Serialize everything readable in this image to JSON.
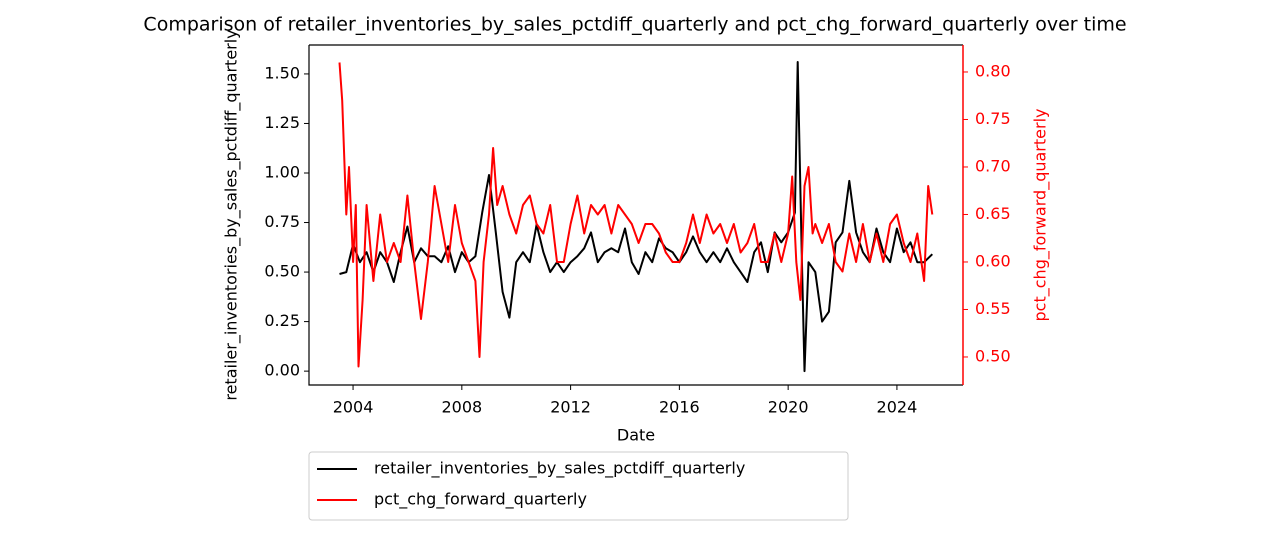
{
  "chart_data": {
    "type": "line",
    "title": "Comparison of retailer_inventories_by_sales_pctdiff_quarterly and pct_chg_forward_quarterly over time",
    "xlabel": "Date",
    "ylabel": "retailer_inventories_by_sales_pctdiff_quarterly",
    "y2label": "pct_chg_forward_quarterly",
    "xlim": [
      2002.38,
      2026.43
    ],
    "xticks": [
      2004,
      2008,
      2012,
      2016,
      2020,
      2024
    ],
    "ylim": [
      -0.07,
      1.646
    ],
    "yticks": [
      {
        "value": 0,
        "label": "0.00"
      },
      {
        "value": 0.25,
        "label": "0.25"
      },
      {
        "value": 0.5,
        "label": "0.50"
      },
      {
        "value": 0.75,
        "label": "0.75"
      },
      {
        "value": 1,
        "label": "1.00"
      },
      {
        "value": 1.25,
        "label": "1.25"
      },
      {
        "value": 1.5,
        "label": "1.50"
      }
    ],
    "y2lim": [
      0.4705,
      0.8284
    ],
    "y2ticks": [
      {
        "value": 0.5,
        "label": "0.50"
      },
      {
        "value": 0.55,
        "label": "0.55"
      },
      {
        "value": 0.6,
        "label": "0.60"
      },
      {
        "value": 0.65,
        "label": "0.65"
      },
      {
        "value": 0.7,
        "label": "0.70"
      },
      {
        "value": 0.75,
        "label": "0.75"
      },
      {
        "value": 0.8,
        "label": "0.80"
      }
    ],
    "y2color": "#ff0000",
    "legend": "below",
    "series": [
      {
        "name": "retailer_inventories_by_sales_pctdiff_quarterly",
        "color": "#000000",
        "axis": "y",
        "x": [
          2003.5,
          2003.75,
          2004.0,
          2004.25,
          2004.5,
          2004.75,
          2005.0,
          2005.25,
          2005.5,
          2005.75,
          2006.0,
          2006.25,
          2006.5,
          2006.75,
          2007.0,
          2007.25,
          2007.5,
          2007.75,
          2008.0,
          2008.25,
          2008.5,
          2008.75,
          2009.0,
          2009.25,
          2009.5,
          2009.75,
          2010.0,
          2010.25,
          2010.5,
          2010.75,
          2011.0,
          2011.25,
          2011.5,
          2011.75,
          2012.0,
          2012.25,
          2012.5,
          2012.75,
          2013.0,
          2013.25,
          2013.5,
          2013.75,
          2014.0,
          2014.25,
          2014.5,
          2014.75,
          2015.0,
          2015.25,
          2015.5,
          2015.75,
          2016.0,
          2016.25,
          2016.5,
          2016.75,
          2017.0,
          2017.25,
          2017.5,
          2017.75,
          2018.0,
          2018.25,
          2018.5,
          2018.75,
          2019.0,
          2019.25,
          2019.5,
          2019.75,
          2020.0,
          2020.25,
          2020.35,
          2020.5,
          2020.6,
          2020.75,
          2021.0,
          2021.25,
          2021.5,
          2021.75,
          2022.0,
          2022.25,
          2022.5,
          2022.75,
          2023.0,
          2023.25,
          2023.5,
          2023.75,
          2024.0,
          2024.25,
          2024.5,
          2024.75,
          2025.0,
          2025.3
        ],
        "values": [
          0.49,
          0.5,
          0.64,
          0.55,
          0.6,
          0.5,
          0.6,
          0.55,
          0.45,
          0.6,
          0.73,
          0.55,
          0.62,
          0.58,
          0.58,
          0.55,
          0.63,
          0.5,
          0.6,
          0.55,
          0.58,
          0.8,
          0.99,
          0.7,
          0.4,
          0.27,
          0.55,
          0.6,
          0.55,
          0.74,
          0.6,
          0.5,
          0.55,
          0.5,
          0.55,
          0.58,
          0.62,
          0.7,
          0.55,
          0.6,
          0.62,
          0.6,
          0.72,
          0.55,
          0.49,
          0.6,
          0.55,
          0.67,
          0.62,
          0.6,
          0.55,
          0.6,
          0.68,
          0.6,
          0.55,
          0.6,
          0.55,
          0.62,
          0.55,
          0.5,
          0.45,
          0.6,
          0.65,
          0.5,
          0.7,
          0.65,
          0.7,
          0.8,
          1.56,
          0.6,
          0.0,
          0.55,
          0.5,
          0.25,
          0.3,
          0.65,
          0.7,
          0.96,
          0.7,
          0.6,
          0.55,
          0.72,
          0.6,
          0.55,
          0.72,
          0.6,
          0.65,
          0.55,
          0.55,
          0.59
        ]
      },
      {
        "name": "pct_chg_forward_quarterly",
        "color": "#ff0000",
        "axis": "y2",
        "x": [
          2003.5,
          2003.6,
          2003.75,
          2003.85,
          2004.0,
          2004.1,
          2004.2,
          2004.35,
          2004.5,
          2004.75,
          2005.0,
          2005.25,
          2005.5,
          2005.75,
          2006.0,
          2006.25,
          2006.5,
          2006.75,
          2007.0,
          2007.25,
          2007.5,
          2007.75,
          2008.0,
          2008.25,
          2008.5,
          2008.65,
          2008.8,
          2009.0,
          2009.15,
          2009.3,
          2009.5,
          2009.75,
          2010.0,
          2010.25,
          2010.5,
          2010.75,
          2011.0,
          2011.25,
          2011.5,
          2011.75,
          2012.0,
          2012.25,
          2012.5,
          2012.75,
          2013.0,
          2013.25,
          2013.5,
          2013.75,
          2014.0,
          2014.25,
          2014.5,
          2014.75,
          2015.0,
          2015.25,
          2015.5,
          2015.75,
          2016.0,
          2016.25,
          2016.5,
          2016.75,
          2017.0,
          2017.25,
          2017.5,
          2017.75,
          2018.0,
          2018.25,
          2018.5,
          2018.75,
          2019.0,
          2019.25,
          2019.5,
          2019.75,
          2020.0,
          2020.15,
          2020.3,
          2020.45,
          2020.6,
          2020.75,
          2020.9,
          2021.0,
          2021.25,
          2021.5,
          2021.75,
          2022.0,
          2022.25,
          2022.5,
          2022.75,
          2023.0,
          2023.25,
          2023.5,
          2023.75,
          2024.0,
          2024.25,
          2024.5,
          2024.75,
          2025.0,
          2025.15,
          2025.3
        ],
        "values": [
          0.81,
          0.77,
          0.65,
          0.7,
          0.6,
          0.66,
          0.49,
          0.56,
          0.66,
          0.58,
          0.65,
          0.6,
          0.62,
          0.6,
          0.67,
          0.6,
          0.54,
          0.6,
          0.68,
          0.64,
          0.6,
          0.66,
          0.62,
          0.6,
          0.58,
          0.5,
          0.6,
          0.65,
          0.72,
          0.66,
          0.68,
          0.65,
          0.63,
          0.66,
          0.67,
          0.64,
          0.63,
          0.66,
          0.6,
          0.6,
          0.64,
          0.67,
          0.63,
          0.66,
          0.65,
          0.66,
          0.63,
          0.66,
          0.65,
          0.64,
          0.62,
          0.64,
          0.64,
          0.63,
          0.61,
          0.6,
          0.6,
          0.62,
          0.65,
          0.62,
          0.65,
          0.63,
          0.64,
          0.62,
          0.64,
          0.61,
          0.62,
          0.64,
          0.6,
          0.6,
          0.63,
          0.6,
          0.63,
          0.69,
          0.6,
          0.56,
          0.68,
          0.7,
          0.63,
          0.64,
          0.62,
          0.64,
          0.6,
          0.59,
          0.63,
          0.6,
          0.64,
          0.6,
          0.63,
          0.6,
          0.64,
          0.65,
          0.62,
          0.6,
          0.63,
          0.58,
          0.68,
          0.65
        ]
      }
    ]
  }
}
